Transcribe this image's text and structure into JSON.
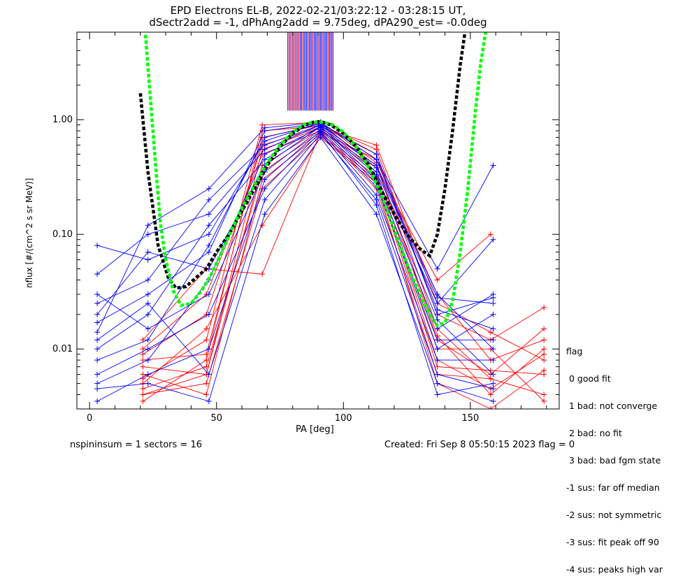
{
  "chart_data": {
    "type": "line",
    "title": "EPD Electrons EL-B, 2022-02-21/03:22:12 - 03:28:15 UT,",
    "subtitle": "dSectr2add = -1, dPhAng2add = 9.75deg, dPA290_est=  -0.0deg",
    "xlabel": "PA [deg]",
    "ylabel": "nflux [#/(cm^2 s sr MeV)]",
    "xlim": [
      -5,
      185
    ],
    "ylim": [
      0.003,
      5.8
    ],
    "yscale": "log",
    "x_ticks": [
      0,
      50,
      100,
      150
    ],
    "y_ticks": [
      {
        "value": 0.01,
        "label": "0.01"
      },
      {
        "value": 0.1,
        "label": "0.10"
      },
      {
        "value": 1.0,
        "label": "1.00"
      }
    ],
    "fits": [
      {
        "color": "#000000",
        "style": "dashed",
        "x": [
          20,
          23,
          27,
          31,
          34,
          38,
          42,
          46,
          50,
          55,
          60,
          65,
          70,
          75,
          80,
          85,
          88,
          90,
          92,
          95,
          100,
          105,
          110,
          115,
          120,
          125,
          130,
          134,
          137,
          140,
          143,
          146,
          148
        ],
        "y": [
          1.7,
          0.35,
          0.08,
          0.042,
          0.034,
          0.035,
          0.042,
          0.05,
          0.07,
          0.1,
          0.16,
          0.25,
          0.4,
          0.58,
          0.76,
          0.9,
          0.95,
          0.96,
          0.95,
          0.9,
          0.76,
          0.58,
          0.4,
          0.24,
          0.15,
          0.1,
          0.075,
          0.065,
          0.1,
          0.25,
          0.8,
          3.0,
          6.0
        ]
      },
      {
        "color": "#00ff00",
        "style": "dashed",
        "x": [
          22,
          24,
          26,
          28,
          30,
          33,
          36,
          40,
          44,
          48,
          52,
          56,
          60,
          65,
          70,
          75,
          80,
          85,
          90,
          95,
          100,
          105,
          110,
          115,
          120,
          125,
          130,
          134,
          137,
          140,
          143,
          146,
          149,
          152,
          154,
          156
        ],
        "y": [
          5.5,
          1.5,
          0.4,
          0.12,
          0.06,
          0.032,
          0.024,
          0.025,
          0.032,
          0.045,
          0.07,
          0.11,
          0.17,
          0.27,
          0.42,
          0.6,
          0.78,
          0.92,
          0.96,
          0.92,
          0.78,
          0.58,
          0.38,
          0.22,
          0.11,
          0.055,
          0.03,
          0.02,
          0.016,
          0.017,
          0.026,
          0.07,
          0.25,
          1.2,
          3.0,
          5.8
        ]
      }
    ],
    "series": [
      {
        "color": "#ff0000",
        "profiles": [
          {
            "x": [
              21,
              46,
              68,
              91,
              113,
              137,
              158,
              179
            ],
            "y": [
              0.004,
              0.006,
              0.55,
              0.85,
              0.4,
              0.012,
              0.006,
              0.015
            ]
          },
          {
            "x": [
              21,
              46,
              68,
              91,
              113,
              137,
              158,
              179
            ],
            "y": [
              0.006,
              0.004,
              0.3,
              0.75,
              0.32,
              0.008,
              0.0045,
              0.009
            ]
          },
          {
            "x": [
              21,
              46,
              68,
              91,
              113,
              137,
              158,
              179
            ],
            "y": [
              0.008,
              0.009,
              0.7,
              0.9,
              0.55,
              0.02,
              0.012,
              0.023
            ]
          },
          {
            "x": [
              21,
              46,
              68,
              91,
              113,
              137,
              158,
              179
            ],
            "y": [
              0.005,
              0.015,
              0.12,
              0.7,
              0.28,
              0.005,
              0.003,
              0.0065
            ]
          },
          {
            "x": [
              21,
              46,
              68,
              91,
              113,
              137,
              158,
              179
            ],
            "y": [
              0.012,
              0.05,
              0.045,
              0.78,
              0.45,
              0.03,
              0.008,
              0.012
            ]
          },
          {
            "x": [
              21,
              46,
              68,
              91,
              113,
              137,
              158,
              179
            ],
            "y": [
              0.0035,
              0.008,
              0.8,
              0.88,
              0.5,
              0.015,
              0.0055,
              0.004
            ]
          },
          {
            "x": [
              21,
              46,
              68,
              91,
              113,
              137,
              158,
              179
            ],
            "y": [
              0.007,
              0.006,
              0.4,
              0.82,
              0.35,
              0.01,
              0.01,
              0.0035
            ]
          },
          {
            "x": [
              21,
              46,
              68,
              91,
              113,
              137,
              158,
              179
            ],
            "y": [
              0.009,
              0.02,
              0.6,
              0.86,
              0.6,
              0.025,
              0.014,
              0.008
            ]
          },
          {
            "x": [
              21,
              46,
              68,
              91,
              113,
              137,
              158,
              179
            ],
            "y": [
              0.004,
              0.005,
              0.25,
              0.72,
              0.3,
              0.007,
              0.0065,
              0.006
            ]
          },
          {
            "x": [
              21,
              46,
              68,
              91,
              113,
              137,
              158,
              179
            ],
            "y": [
              0.0055,
              0.012,
              0.9,
              0.95,
              0.42,
              0.013,
              0.004,
              0.01
            ]
          },
          {
            "x": [
              21,
              46,
              68,
              91,
              113,
              137,
              158
            ],
            "y": [
              0.01,
              0.03,
              0.5,
              0.8,
              0.38,
              0.04,
              0.1
            ]
          },
          {
            "x": [
              21,
              46,
              68,
              91,
              113,
              137,
              158
            ],
            "y": [
              0.0045,
              0.007,
              0.35,
              0.78,
              0.25,
              0.006,
              0.0055
            ]
          }
        ]
      },
      {
        "color": "#0000ff",
        "profiles": [
          {
            "x": [
              3,
              23,
              47,
              69,
              91,
              113,
              137,
              159
            ],
            "y": [
              0.014,
              0.12,
              0.25,
              0.85,
              0.95,
              0.45,
              0.05,
              0.4
            ]
          },
          {
            "x": [
              3,
              23,
              47,
              69,
              91,
              113,
              137,
              159
            ],
            "y": [
              0.025,
              0.04,
              0.2,
              0.6,
              0.9,
              0.35,
              0.025,
              0.09
            ]
          },
          {
            "x": [
              3,
              23,
              47,
              69,
              91,
              113,
              137,
              159
            ],
            "y": [
              0.01,
              0.02,
              0.12,
              0.45,
              0.88,
              0.3,
              0.015,
              0.03
            ]
          },
          {
            "x": [
              3,
              23,
              47,
              69,
              91,
              113,
              137,
              159
            ],
            "y": [
              0.008,
              0.012,
              0.08,
              0.7,
              0.92,
              0.5,
              0.02,
              0.028
            ]
          },
          {
            "x": [
              3,
              23,
              47,
              69,
              91,
              113,
              137,
              159
            ],
            "y": [
              0.005,
              0.008,
              0.04,
              0.5,
              0.85,
              0.28,
              0.01,
              0.02
            ]
          },
          {
            "x": [
              3,
              23,
              47,
              69,
              91,
              113,
              137,
              159
            ],
            "y": [
              0.0035,
              0.006,
              0.01,
              0.3,
              0.8,
              0.22,
              0.008,
              0.008
            ]
          },
          {
            "x": [
              3,
              23,
              47,
              69,
              91,
              113,
              137,
              159
            ],
            "y": [
              0.045,
              0.1,
              0.15,
              0.55,
              0.9,
              0.4,
              0.03,
              0.01
            ]
          },
          {
            "x": [
              3,
              23,
              47,
              69,
              91,
              113,
              137,
              159
            ],
            "y": [
              0.02,
              0.07,
              0.05,
              0.4,
              0.87,
              0.33,
              0.018,
              0.006
            ]
          },
          {
            "x": [
              3,
              23,
              47,
              69,
              91,
              113,
              137,
              159
            ],
            "y": [
              0.012,
              0.025,
              0.006,
              0.2,
              0.75,
              0.2,
              0.006,
              0.0045
            ]
          },
          {
            "x": [
              3,
              23,
              47,
              69,
              91,
              113,
              137,
              159
            ],
            "y": [
              0.0045,
              0.005,
              0.0035,
              0.15,
              0.7,
              0.15,
              0.005,
              0.0035
            ]
          },
          {
            "x": [
              3,
              23,
              47,
              69,
              91,
              113,
              137,
              159
            ],
            "y": [
              0.08,
              0.06,
              0.1,
              0.65,
              0.95,
              0.45,
              0.022,
              0.015
            ]
          },
          {
            "x": [
              3,
              23,
              47,
              69,
              91,
              113,
              137,
              159
            ],
            "y": [
              0.03,
              0.015,
              0.03,
              0.35,
              0.82,
              0.26,
              0.012,
              0.012
            ]
          },
          {
            "x": [
              3,
              23,
              47,
              69,
              91,
              113,
              137,
              159
            ],
            "y": [
              0.006,
              0.01,
              0.02,
              0.25,
              0.78,
              0.18,
              0.004,
              0.005
            ]
          },
          {
            "x": [
              3,
              23,
              47,
              69,
              91,
              113,
              137,
              159
            ],
            "y": [
              0.017,
              0.03,
              0.07,
              0.8,
              0.93,
              0.38,
              0.028,
              0.025
            ]
          }
        ]
      }
    ],
    "spikes": {
      "x_start": 78,
      "x_end": 96,
      "y_top": 5.8,
      "y_bottom": 1.2
    }
  },
  "legend": {
    "title": "flag",
    "items": [
      " 0 good fit",
      " 1 bad: not converge",
      " 2 bad: no fit",
      " 3 bad: bad fgm state",
      "-1 sus: far off median",
      "-2 sus: not symmetric",
      "-3 sus: fit peak off 90",
      "-4 sus: peaks high var"
    ]
  },
  "footer": {
    "left": "nspininsum =  1  sectors = 16",
    "right": "Created: Fri Sep  8 05:50:15 2023   flag = 0"
  }
}
